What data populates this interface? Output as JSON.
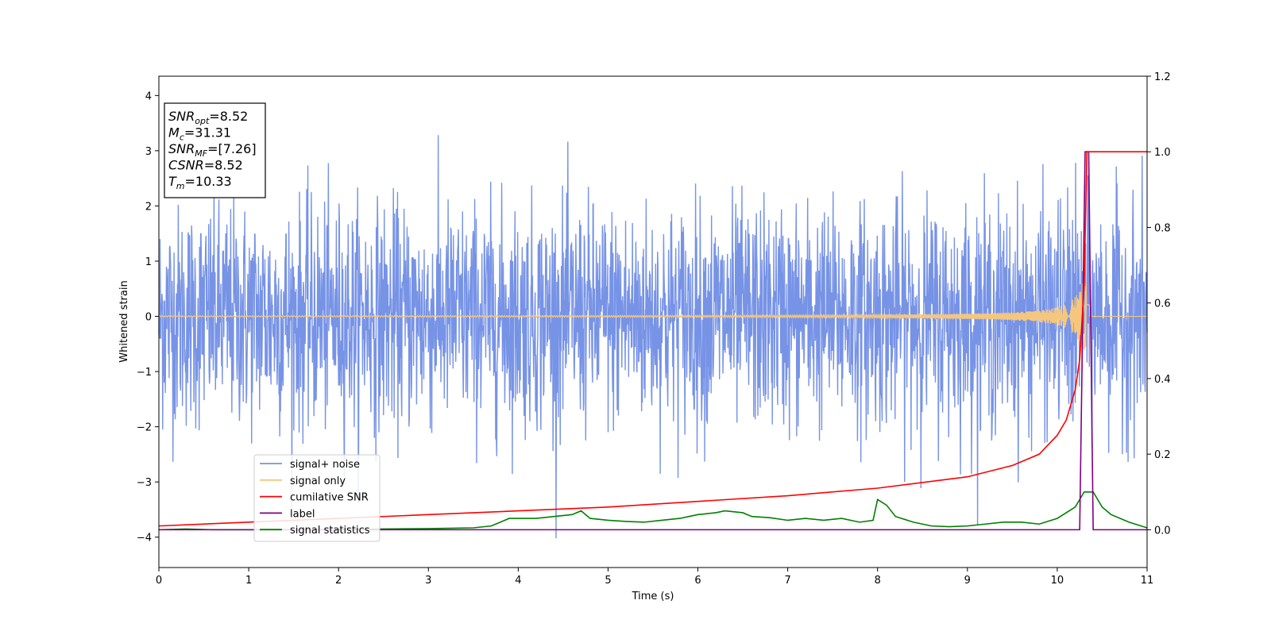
{
  "chart_data": {
    "type": "line",
    "xlabel": "Time (s)",
    "ylabel": "Whitened strain",
    "xlim": [
      0,
      11
    ],
    "ylim": [
      -4.55,
      4.35
    ],
    "y2lim": [
      -0.1,
      1.2
    ],
    "xticks": [
      "0",
      "1",
      "2",
      "3",
      "4",
      "5",
      "6",
      "7",
      "8",
      "9",
      "10",
      "11"
    ],
    "yticks": [
      "−4",
      "−3",
      "−2",
      "−1",
      "0",
      "1",
      "2",
      "3",
      "4"
    ],
    "y2ticks": [
      "0.0",
      "0.2",
      "0.4",
      "0.6",
      "0.8",
      "1.0",
      "1.2"
    ],
    "legend_position": "lower-left",
    "annotation": [
      {
        "main": "SNR",
        "sub": "opt",
        "value": "=8.52"
      },
      {
        "main": "M",
        "sub": "c",
        "value": "=31.31"
      },
      {
        "main": "SNR",
        "sub": "MF",
        "value": "=[7.26]"
      },
      {
        "main": "CSNR",
        "sub": "",
        "value": "=8.52"
      },
      {
        "main": "T",
        "sub": "m",
        "value": "=10.33"
      }
    ],
    "series": [
      {
        "name": "signal+ noise",
        "color": "#7793e6",
        "axis": "left",
        "noise_amplitude": 1.0,
        "x_range": [
          0,
          11
        ]
      },
      {
        "name": "signal only",
        "color": "#f5c77e",
        "axis": "left",
        "merger_time": 10.33,
        "peak_amplitude": 0.6
      },
      {
        "name": "cumilative SNR",
        "color": "#ff0000",
        "axis": "right",
        "x": [
          0,
          1,
          2,
          3,
          4,
          5,
          6,
          7,
          8,
          9,
          9.5,
          9.8,
          10.0,
          10.1,
          10.2,
          10.25,
          10.3,
          10.33,
          11
        ],
        "y": [
          0.01,
          0.02,
          0.03,
          0.04,
          0.05,
          0.06,
          0.075,
          0.09,
          0.11,
          0.14,
          0.17,
          0.2,
          0.25,
          0.29,
          0.37,
          0.45,
          0.65,
          1.0,
          1.0
        ]
      },
      {
        "name": "label",
        "color": "#800080",
        "axis": "right",
        "x": [
          0,
          10.25,
          10.31,
          10.35,
          10.4,
          11
        ],
        "y": [
          0.0,
          0.0,
          1.0,
          1.0,
          0.0,
          0.0
        ]
      },
      {
        "name": "signal statistics",
        "color": "#008000",
        "axis": "right",
        "x": [
          0,
          0.3,
          0.6,
          1,
          2,
          2.5,
          3,
          3.5,
          3.7,
          3.8,
          3.9,
          4.0,
          4.2,
          4.4,
          4.6,
          4.7,
          4.8,
          5.0,
          5.2,
          5.4,
          5.6,
          5.8,
          5.9,
          6.0,
          6.2,
          6.3,
          6.5,
          6.6,
          6.8,
          7.0,
          7.2,
          7.4,
          7.6,
          7.8,
          7.95,
          8.0,
          8.1,
          8.2,
          8.4,
          8.6,
          8.8,
          9.0,
          9.2,
          9.4,
          9.6,
          9.8,
          10.0,
          10.2,
          10.3,
          10.4,
          10.5,
          10.6,
          10.8,
          11
        ],
        "y": [
          0.0,
          0.002,
          0.0,
          0.0,
          0.0,
          0.002,
          0.003,
          0.005,
          0.01,
          0.02,
          0.03,
          0.03,
          0.03,
          0.035,
          0.04,
          0.05,
          0.03,
          0.025,
          0.022,
          0.02,
          0.025,
          0.03,
          0.035,
          0.04,
          0.045,
          0.05,
          0.045,
          0.035,
          0.032,
          0.025,
          0.03,
          0.025,
          0.03,
          0.02,
          0.025,
          0.08,
          0.065,
          0.035,
          0.02,
          0.01,
          0.008,
          0.01,
          0.015,
          0.02,
          0.02,
          0.015,
          0.03,
          0.06,
          0.1,
          0.1,
          0.06,
          0.04,
          0.02,
          0.005
        ]
      }
    ]
  }
}
